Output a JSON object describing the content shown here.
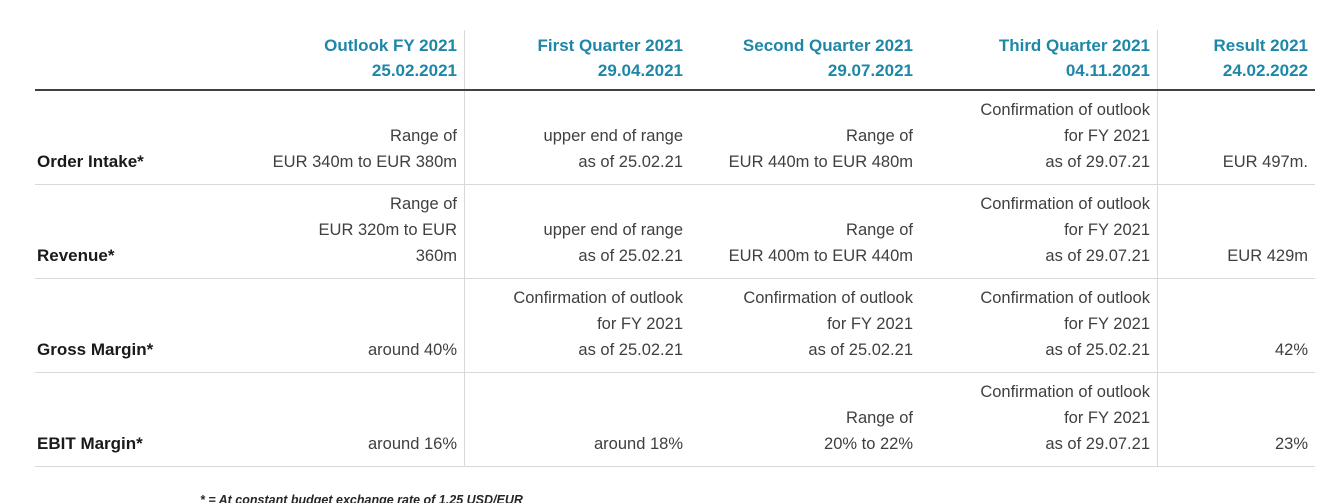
{
  "colors": {
    "accent_teal": "#1E87A8",
    "body_text": "#3F3F3F",
    "light_line": "#D9D9D9",
    "dark_line": "#404040"
  },
  "table": {
    "columns": [
      {
        "title": "Outlook FY 2021",
        "date": "25.02.2021"
      },
      {
        "title": "First Quarter 2021",
        "date": "29.04.2021"
      },
      {
        "title": "Second Quarter 2021",
        "date": "29.07.2021"
      },
      {
        "title": "Third Quarter 2021",
        "date": "04.11.2021"
      },
      {
        "title": "Result 2021",
        "date": "24.02.2022"
      }
    ],
    "rows": [
      {
        "label": "Order Intake*",
        "cells": [
          "Range of\nEUR 340m to EUR 380m",
          "upper end of range\nas of 25.02.21",
          "Range of\nEUR 440m to EUR 480m",
          "Confirmation of outlook\nfor FY 2021\nas of 29.07.21",
          "EUR 497m."
        ]
      },
      {
        "label": "Revenue*",
        "cells": [
          "Range of\nEUR 320m to EUR\n360m",
          "upper end of range\nas of 25.02.21",
          "Range of\nEUR 400m to EUR 440m",
          "Confirmation of outlook\nfor FY 2021\nas of 29.07.21",
          "EUR 429m"
        ]
      },
      {
        "label": "Gross Margin*",
        "cells": [
          "around 40%",
          "Confirmation of outlook\nfor FY 2021\nas of 25.02.21",
          "Confirmation of outlook\nfor FY 2021\nas of 25.02.21",
          "Confirmation of outlook\nfor FY 2021\nas of 25.02.21",
          "42%"
        ]
      },
      {
        "label": "EBIT Margin*",
        "cells": [
          "around 16%",
          "around 18%",
          "Range of\n20% to 22%",
          "Confirmation of outlook\nfor FY 2021\nas of 29.07.21",
          "23%"
        ]
      }
    ]
  },
  "footnote": "* = At constant budget exchange rate of 1.25 USD/EUR"
}
